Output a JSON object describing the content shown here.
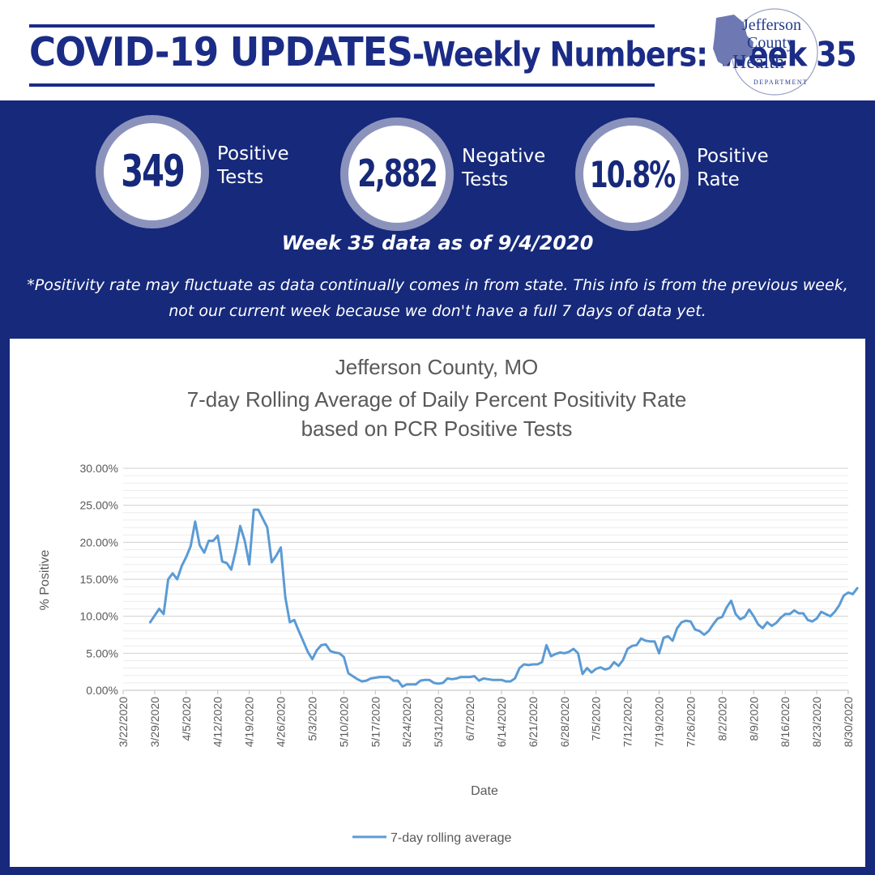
{
  "header": {
    "title_main": "COVID-19 UPDATES",
    "title_sub": "-Weekly Numbers: Week 35",
    "logo_lines": [
      "Jefferson",
      "County",
      "Health",
      "DEPARTMENT"
    ]
  },
  "stats": [
    {
      "value": "349",
      "label": "Positive\nTests"
    },
    {
      "value": "2,882",
      "label": "Negative\nTests"
    },
    {
      "value": "10.8%",
      "label": "Positive\nRate"
    }
  ],
  "data_date": "Week 35 data as of 9/4/2020",
  "footnote": "*Positivity rate may fluctuate as data continually comes in from state. This info is from the previous week, not our current week because we don't have a full 7 days of data yet.",
  "colors": {
    "navy": "#16297a",
    "circle_ring": "#8b93bd",
    "line": "#5b9bd5"
  },
  "chart_data": {
    "type": "line",
    "title": [
      "Jefferson County, MO",
      "7-day Rolling Average of Daily Percent Positivity Rate",
      "based on PCR Positive Tests"
    ],
    "xlabel": "Date",
    "ylabel": "% Positive",
    "ylim": [
      0,
      30
    ],
    "yticks": [
      "0.00%",
      "5.00%",
      "10.00%",
      "15.00%",
      "20.00%",
      "25.00%",
      "30.00%"
    ],
    "x_range": [
      "3/22/2020",
      "8/30/2020"
    ],
    "x_ticks": [
      "3/22/2020",
      "3/29/2020",
      "4/5/2020",
      "4/12/2020",
      "4/19/2020",
      "4/26/2020",
      "5/3/2020",
      "5/10/2020",
      "5/17/2020",
      "5/24/2020",
      "5/31/2020",
      "6/7/2020",
      "6/14/2020",
      "6/21/2020",
      "6/28/2020",
      "7/5/2020",
      "7/12/2020",
      "7/19/2020",
      "7/26/2020",
      "8/2/2020",
      "8/9/2020",
      "8/16/2020",
      "8/23/2020",
      "8/30/2020"
    ],
    "grid": true,
    "legend_position": "bottom",
    "series": [
      {
        "name": "7-day rolling average",
        "points": [
          [
            "3/28/2020",
            9.2
          ],
          [
            "3/30/2020",
            11.0
          ],
          [
            "3/31/2020",
            10.3
          ],
          [
            "4/1/2020",
            15.0
          ],
          [
            "4/2/2020",
            15.8
          ],
          [
            "4/3/2020",
            15.0
          ],
          [
            "4/4/2020",
            16.8
          ],
          [
            "4/5/2020",
            18.0
          ],
          [
            "4/6/2020",
            19.5
          ],
          [
            "4/7/2020",
            22.8
          ],
          [
            "4/8/2020",
            19.6
          ],
          [
            "4/9/2020",
            18.6
          ],
          [
            "4/10/2020",
            20.2
          ],
          [
            "4/11/2020",
            20.2
          ],
          [
            "4/12/2020",
            20.9
          ],
          [
            "4/13/2020",
            17.4
          ],
          [
            "4/14/2020",
            17.2
          ],
          [
            "4/15/2020",
            16.3
          ],
          [
            "4/16/2020",
            18.9
          ],
          [
            "4/17/2020",
            22.2
          ],
          [
            "4/18/2020",
            20.2
          ],
          [
            "4/19/2020",
            17.0
          ],
          [
            "4/20/2020",
            24.4
          ],
          [
            "4/21/2020",
            24.4
          ],
          [
            "4/22/2020",
            23.2
          ],
          [
            "4/23/2020",
            22.0
          ],
          [
            "4/24/2020",
            17.3
          ],
          [
            "4/25/2020",
            18.2
          ],
          [
            "4/26/2020",
            19.3
          ],
          [
            "4/27/2020",
            12.6
          ],
          [
            "4/28/2020",
            9.2
          ],
          [
            "4/29/2020",
            9.5
          ],
          [
            "4/30/2020",
            8.0
          ],
          [
            "5/1/2020",
            6.6
          ],
          [
            "5/2/2020",
            5.2
          ],
          [
            "5/3/2020",
            4.2
          ],
          [
            "5/4/2020",
            5.4
          ],
          [
            "5/5/2020",
            6.1
          ],
          [
            "5/6/2020",
            6.2
          ],
          [
            "5/7/2020",
            5.3
          ],
          [
            "5/8/2020",
            5.1
          ],
          [
            "5/9/2020",
            5.0
          ],
          [
            "5/10/2020",
            4.5
          ],
          [
            "5/11/2020",
            2.3
          ],
          [
            "5/12/2020",
            1.9
          ],
          [
            "5/13/2020",
            1.5
          ],
          [
            "5/14/2020",
            1.2
          ],
          [
            "5/15/2020",
            1.3
          ],
          [
            "5/16/2020",
            1.6
          ],
          [
            "5/17/2020",
            1.7
          ],
          [
            "5/18/2020",
            1.8
          ],
          [
            "5/19/2020",
            1.8
          ],
          [
            "5/20/2020",
            1.8
          ],
          [
            "5/21/2020",
            1.3
          ],
          [
            "5/22/2020",
            1.3
          ],
          [
            "5/23/2020",
            0.5
          ],
          [
            "5/24/2020",
            0.8
          ],
          [
            "5/25/2020",
            0.8
          ],
          [
            "5/26/2020",
            0.8
          ],
          [
            "5/27/2020",
            1.3
          ],
          [
            "5/28/2020",
            1.4
          ],
          [
            "5/29/2020",
            1.4
          ],
          [
            "5/30/2020",
            1.0
          ],
          [
            "5/31/2020",
            0.9
          ],
          [
            "6/1/2020",
            1.0
          ],
          [
            "6/2/2020",
            1.6
          ],
          [
            "6/3/2020",
            1.5
          ],
          [
            "6/4/2020",
            1.6
          ],
          [
            "6/5/2020",
            1.8
          ],
          [
            "6/6/2020",
            1.8
          ],
          [
            "6/7/2020",
            1.8
          ],
          [
            "6/8/2020",
            1.9
          ],
          [
            "6/9/2020",
            1.3
          ],
          [
            "6/10/2020",
            1.6
          ],
          [
            "6/11/2020",
            1.5
          ],
          [
            "6/12/2020",
            1.4
          ],
          [
            "6/13/2020",
            1.4
          ],
          [
            "6/14/2020",
            1.4
          ],
          [
            "6/15/2020",
            1.2
          ],
          [
            "6/16/2020",
            1.2
          ],
          [
            "6/17/2020",
            1.6
          ],
          [
            "6/18/2020",
            3.0
          ],
          [
            "6/19/2020",
            3.5
          ],
          [
            "6/20/2020",
            3.4
          ],
          [
            "6/21/2020",
            3.5
          ],
          [
            "6/22/2020",
            3.5
          ],
          [
            "6/23/2020",
            3.8
          ],
          [
            "6/24/2020",
            6.1
          ],
          [
            "6/25/2020",
            4.6
          ],
          [
            "6/26/2020",
            4.9
          ],
          [
            "6/27/2020",
            5.1
          ],
          [
            "6/28/2020",
            5.0
          ],
          [
            "6/29/2020",
            5.2
          ],
          [
            "6/30/2020",
            5.6
          ],
          [
            "7/1/2020",
            5.0
          ],
          [
            "7/2/2020",
            2.2
          ],
          [
            "7/3/2020",
            3.0
          ],
          [
            "7/4/2020",
            2.4
          ],
          [
            "7/5/2020",
            2.9
          ],
          [
            "7/6/2020",
            3.1
          ],
          [
            "7/7/2020",
            2.8
          ],
          [
            "7/8/2020",
            3.0
          ],
          [
            "7/9/2020",
            3.8
          ],
          [
            "7/10/2020",
            3.3
          ],
          [
            "7/11/2020",
            4.1
          ],
          [
            "7/12/2020",
            5.6
          ],
          [
            "7/13/2020",
            6.0
          ],
          [
            "7/14/2020",
            6.1
          ],
          [
            "7/15/2020",
            7.0
          ],
          [
            "7/16/2020",
            6.7
          ],
          [
            "7/17/2020",
            6.6
          ],
          [
            "7/18/2020",
            6.6
          ],
          [
            "7/19/2020",
            5.0
          ],
          [
            "7/20/2020",
            7.1
          ],
          [
            "7/21/2020",
            7.3
          ],
          [
            "7/22/2020",
            6.7
          ],
          [
            "7/23/2020",
            8.4
          ],
          [
            "7/24/2020",
            9.2
          ],
          [
            "7/25/2020",
            9.4
          ],
          [
            "7/26/2020",
            9.3
          ],
          [
            "7/27/2020",
            8.2
          ],
          [
            "7/28/2020",
            8.0
          ],
          [
            "7/29/2020",
            7.5
          ],
          [
            "7/30/2020",
            8.0
          ],
          [
            "7/31/2020",
            8.9
          ],
          [
            "8/1/2020",
            9.7
          ],
          [
            "8/2/2020",
            9.9
          ],
          [
            "8/3/2020",
            11.2
          ],
          [
            "8/4/2020",
            12.1
          ],
          [
            "8/5/2020",
            10.3
          ],
          [
            "8/6/2020",
            9.6
          ],
          [
            "8/7/2020",
            9.9
          ],
          [
            "8/8/2020",
            10.9
          ],
          [
            "8/9/2020",
            10.0
          ],
          [
            "8/10/2020",
            8.9
          ],
          [
            "8/11/2020",
            8.4
          ],
          [
            "8/12/2020",
            9.2
          ],
          [
            "8/13/2020",
            8.7
          ],
          [
            "8/14/2020",
            9.1
          ],
          [
            "8/15/2020",
            9.8
          ],
          [
            "8/16/2020",
            10.3
          ],
          [
            "8/17/2020",
            10.3
          ],
          [
            "8/18/2020",
            10.8
          ],
          [
            "8/19/2020",
            10.4
          ],
          [
            "8/20/2020",
            10.4
          ],
          [
            "8/21/2020",
            9.5
          ],
          [
            "8/22/2020",
            9.3
          ],
          [
            "8/23/2020",
            9.7
          ],
          [
            "8/24/2020",
            10.6
          ],
          [
            "8/25/2020",
            10.3
          ],
          [
            "8/26/2020",
            10.0
          ],
          [
            "8/27/2020",
            10.6
          ],
          [
            "8/28/2020",
            11.5
          ],
          [
            "8/29/2020",
            12.8
          ],
          [
            "8/30/2020",
            13.2
          ],
          [
            "8/31/2020",
            13.0
          ],
          [
            "9/1/2020",
            13.8
          ]
        ]
      }
    ]
  }
}
